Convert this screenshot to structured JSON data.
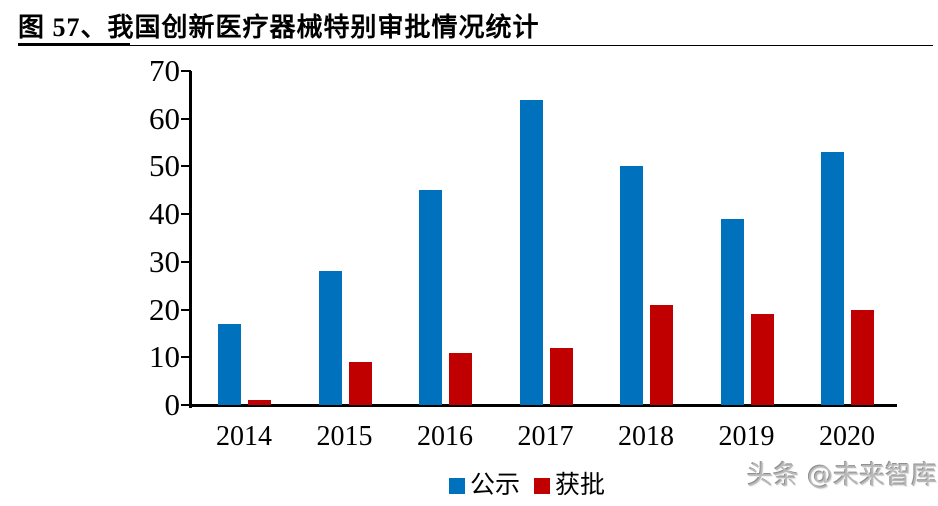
{
  "page": {
    "title": "图 57、我国创新医疗器械特别审批情况统计",
    "watermark": "头条 @未来智库"
  },
  "chart_data": {
    "type": "bar",
    "title": "图 57、我国创新医疗器械特别审批情况统计",
    "categories": [
      "2014",
      "2015",
      "2016",
      "2017",
      "2018",
      "2019",
      "2020"
    ],
    "series": [
      {
        "name": "公示",
        "color": "#0071BC",
        "values": [
          17,
          28,
          45,
          64,
          50,
          39,
          53
        ]
      },
      {
        "name": "获批",
        "color": "#C00000",
        "values": [
          1,
          9,
          11,
          12,
          21,
          19,
          20
        ]
      }
    ],
    "xlabel": "",
    "ylabel": "",
    "ylim": [
      0,
      70
    ],
    "yticks": [
      0,
      10,
      20,
      30,
      40,
      50,
      60,
      70
    ],
    "grid": false,
    "legend_position": "bottom-center",
    "axis_color": "#000000"
  }
}
